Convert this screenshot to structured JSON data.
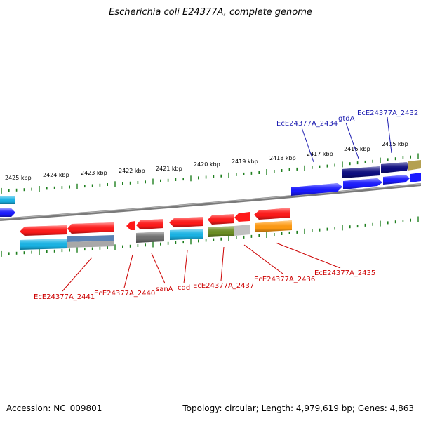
{
  "title": "Escherichia coli E24377A, complete genome",
  "footer": {
    "accession": "Accession: NC_009801",
    "summary": "Topology: circular; Length: 4,979,619 bp; Genes: 4,863"
  },
  "scale_labels": [
    "2425 kbp",
    "2424 kbp",
    "2423 kbp",
    "2422 kbp",
    "2421 kbp",
    "2420 kbp",
    "2419 kbp",
    "2418 kbp",
    "2417 kbp",
    "2416 kbp",
    "2415 kbp"
  ],
  "top_labels": [
    "EcE24377A_2434",
    "gtdA",
    "EcE24377A_2432"
  ],
  "bottom_labels": [
    "EcE24377A_2441",
    "EcE24377A_2440",
    "sanA",
    "cdd",
    "EcE24377A_2437",
    "EcE24377A_2436",
    "EcE24377A_2435"
  ],
  "colors": {
    "backbone": "#808080",
    "tick": "#1f7f1f",
    "red_gene": "#ff1a1a",
    "blue_gene": "#1a1aff",
    "navy_gene": "#0d0d80",
    "cyan_gene": "#19b4e6",
    "steel_gene": "#5a82b4",
    "gray_gene": "#707070",
    "olive_gene": "#6b8e23",
    "silver_gene": "#c0c0c0",
    "orange_gene": "#ff9a10",
    "khaki_gene": "#b4a050",
    "top_label": "#1a1ab0",
    "bottom_label": "#cc0000"
  }
}
